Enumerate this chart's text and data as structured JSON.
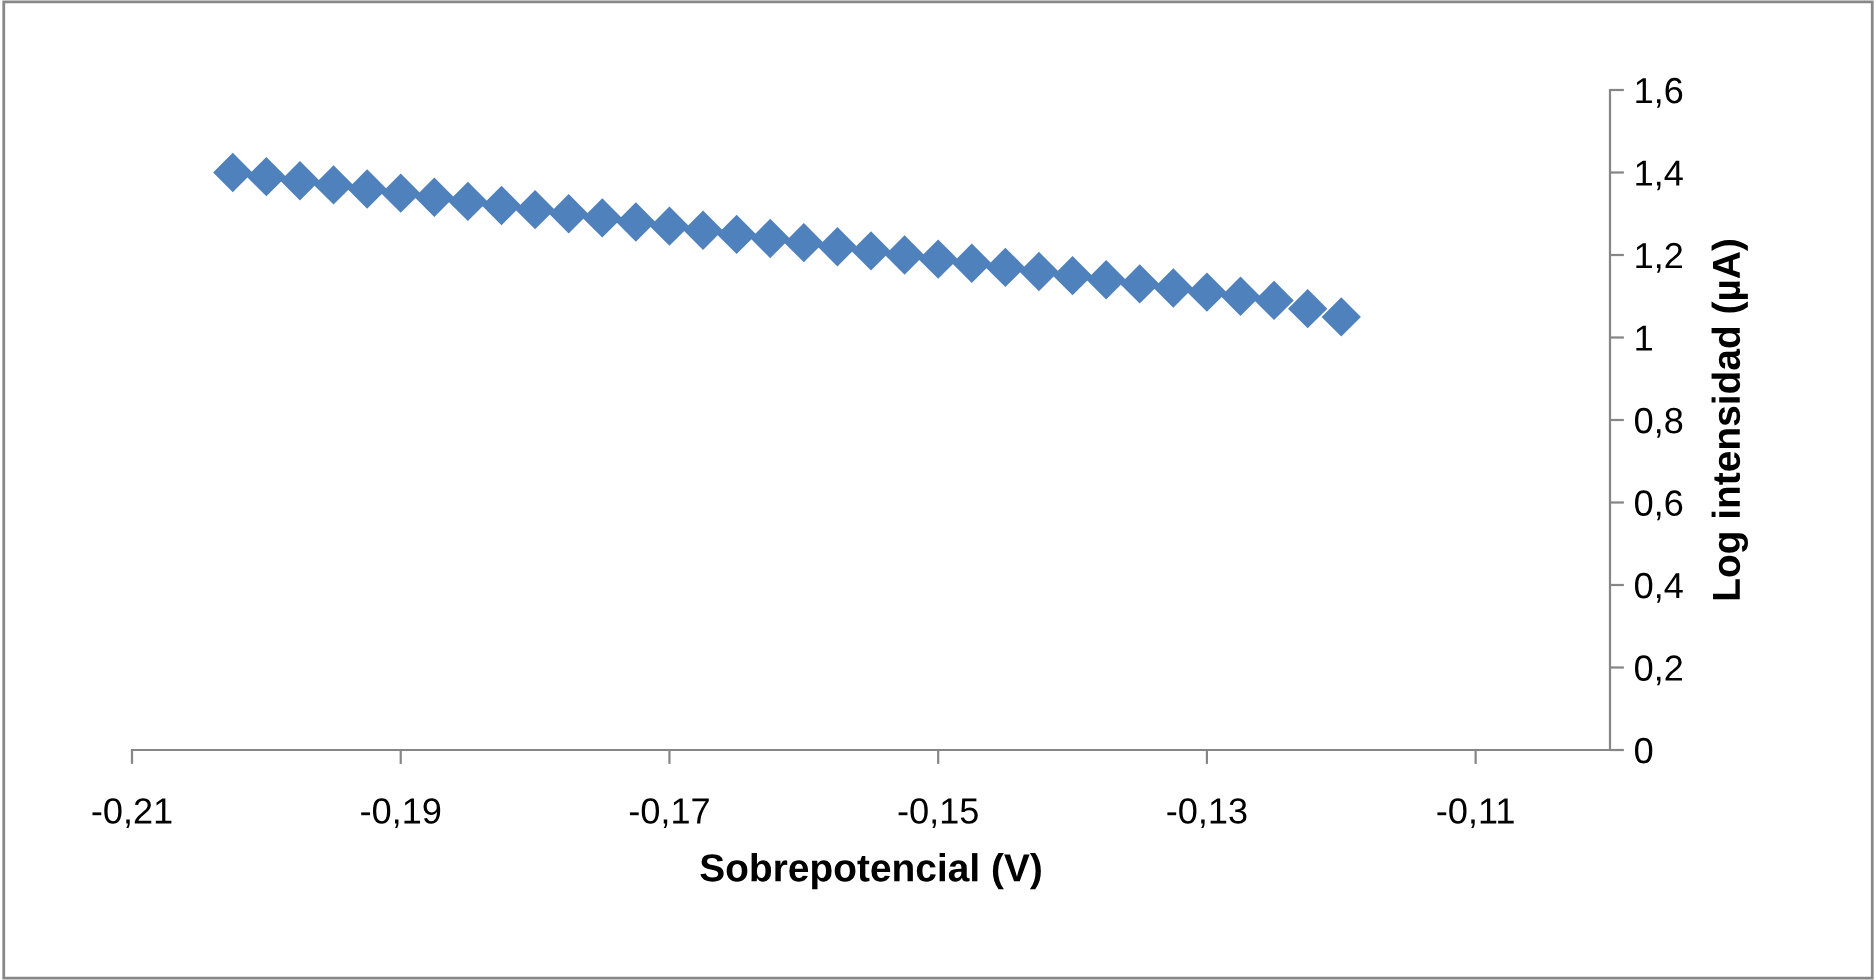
{
  "chart_data": {
    "type": "scatter",
    "xlabel": "Sobrepotencial (V)",
    "ylabel": "Log intensidad (µA)",
    "x": [
      -0.2025,
      -0.2,
      -0.1975,
      -0.195,
      -0.1925,
      -0.19,
      -0.1875,
      -0.185,
      -0.1825,
      -0.18,
      -0.1775,
      -0.175,
      -0.1725,
      -0.17,
      -0.1675,
      -0.165,
      -0.1625,
      -0.16,
      -0.1575,
      -0.155,
      -0.1525,
      -0.15,
      -0.1475,
      -0.145,
      -0.1425,
      -0.14,
      -0.1375,
      -0.135,
      -0.1325,
      -0.13,
      -0.1275,
      -0.125,
      -0.1225,
      -0.12
    ],
    "series": [
      {
        "color": "#4f81bd",
        "values": [
          1.4,
          1.39,
          1.38,
          1.37,
          1.36,
          1.35,
          1.34,
          1.33,
          1.32,
          1.31,
          1.3,
          1.29,
          1.28,
          1.27,
          1.26,
          1.25,
          1.24,
          1.23,
          1.22,
          1.21,
          1.2,
          1.19,
          1.18,
          1.17,
          1.16,
          1.15,
          1.14,
          1.13,
          1.12,
          1.11,
          1.1,
          1.09,
          1.07,
          1.05
        ]
      }
    ],
    "marker": "diamond",
    "grid": false,
    "legend": false,
    "xlim": [
      -0.21,
      -0.1
    ],
    "xticks": [
      {
        "value": -0.21,
        "label": "-0,21"
      },
      {
        "value": -0.19,
        "label": "-0,19"
      },
      {
        "value": -0.17,
        "label": "-0,17"
      },
      {
        "value": -0.15,
        "label": "-0,15"
      },
      {
        "value": -0.13,
        "label": "-0,13"
      },
      {
        "value": -0.11,
        "label": "-0,11"
      }
    ],
    "ylim": [
      0,
      1.6
    ],
    "yticks": [
      0,
      {
        "value": 0.2,
        "label": "0,2"
      },
      {
        "value": 0.4,
        "label": "0,4"
      },
      {
        "value": 0.6,
        "label": "0,6"
      },
      {
        "value": 0.8,
        "label": "0,8"
      },
      1,
      {
        "value": 1.2,
        "label": "1,2"
      },
      {
        "value": 1.4,
        "label": "1,4"
      },
      {
        "value": 1.6,
        "label": "1,6"
      }
    ]
  }
}
